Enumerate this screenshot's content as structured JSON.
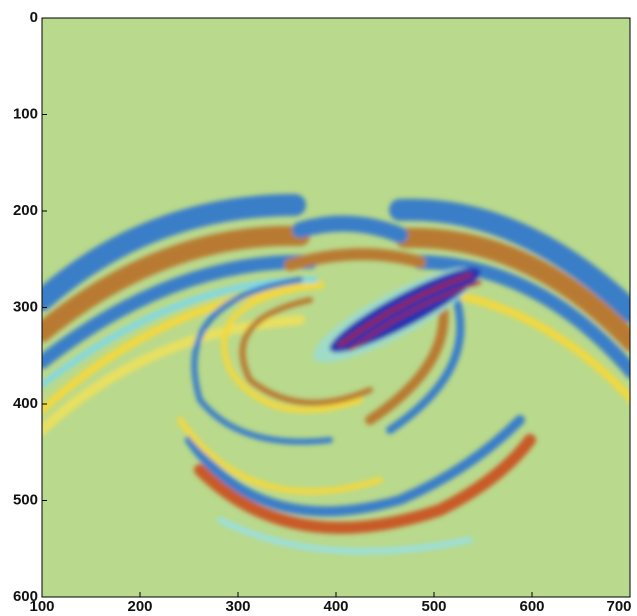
{
  "chart_data": {
    "type": "image",
    "xlim": [
      100,
      700
    ],
    "xticks": [
      100,
      200,
      300,
      400,
      500,
      600,
      700
    ],
    "ylim": [
      600,
      0
    ],
    "yticks": [
      0,
      100,
      200,
      300,
      400,
      500,
      600
    ]
  }
}
